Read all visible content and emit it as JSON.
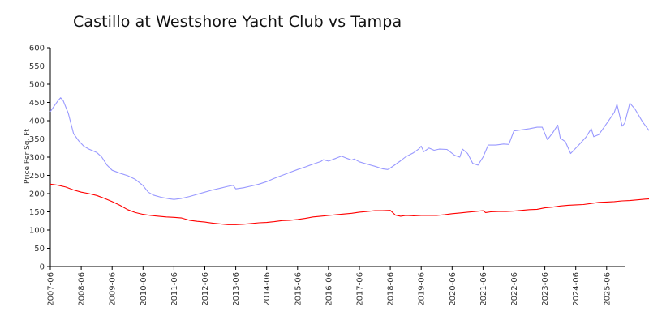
{
  "chart_data": {
    "type": "line",
    "title": "Castillo at Westshore Yacht Club vs Tampa",
    "xlabel": "",
    "ylabel": "Price Per Sq. Ft",
    "ylim": [
      0,
      600
    ],
    "yticks": [
      0,
      50,
      100,
      150,
      200,
      250,
      300,
      350,
      400,
      450,
      500,
      550,
      600
    ],
    "xticks": [
      "2007-06",
      "2008-06",
      "2009-06",
      "2010-06",
      "2011-06",
      "2012-06",
      "2013-06",
      "2014-06",
      "2015-06",
      "2016-06",
      "2017-06",
      "2018-06",
      "2019-06",
      "2020-06",
      "2021-06",
      "2022-06",
      "2023-06",
      "2024-06",
      "2025-06"
    ],
    "grid": false,
    "series": [
      {
        "color": "#9999ff",
        "points": [
          [
            "2007-06",
            425
          ],
          [
            "2007-09",
            455
          ],
          [
            "2007-10",
            463
          ],
          [
            "2007-11",
            455
          ],
          [
            "2008-01",
            420
          ],
          [
            "2008-03",
            365
          ],
          [
            "2008-05",
            345
          ],
          [
            "2008-07",
            330
          ],
          [
            "2008-09",
            322
          ],
          [
            "2008-12",
            313
          ],
          [
            "2009-02",
            300
          ],
          [
            "2009-04",
            278
          ],
          [
            "2009-06",
            264
          ],
          [
            "2009-09",
            256
          ],
          [
            "2009-12",
            249
          ],
          [
            "2010-03",
            239
          ],
          [
            "2010-06",
            222
          ],
          [
            "2010-08",
            204
          ],
          [
            "2010-10",
            196
          ],
          [
            "2011-01",
            190
          ],
          [
            "2011-04",
            186
          ],
          [
            "2011-06",
            184
          ],
          [
            "2011-09",
            187
          ],
          [
            "2011-12",
            192
          ],
          [
            "2012-03",
            198
          ],
          [
            "2012-06",
            204
          ],
          [
            "2012-09",
            210
          ],
          [
            "2012-12",
            215
          ],
          [
            "2013-03",
            220
          ],
          [
            "2013-05",
            223
          ],
          [
            "2013-06",
            213
          ],
          [
            "2013-09",
            216
          ],
          [
            "2013-12",
            221
          ],
          [
            "2014-03",
            226
          ],
          [
            "2014-06",
            233
          ],
          [
            "2014-09",
            242
          ],
          [
            "2014-12",
            250
          ],
          [
            "2015-03",
            258
          ],
          [
            "2015-06",
            266
          ],
          [
            "2015-09",
            273
          ],
          [
            "2015-12",
            281
          ],
          [
            "2016-03",
            288
          ],
          [
            "2016-04",
            293
          ],
          [
            "2016-06",
            289
          ],
          [
            "2016-09",
            297
          ],
          [
            "2016-11",
            303
          ],
          [
            "2017-01",
            297
          ],
          [
            "2017-03",
            292
          ],
          [
            "2017-04",
            295
          ],
          [
            "2017-06",
            287
          ],
          [
            "2017-09",
            281
          ],
          [
            "2017-12",
            275
          ],
          [
            "2018-03",
            268
          ],
          [
            "2018-05",
            266
          ],
          [
            "2018-06",
            270
          ],
          [
            "2018-08",
            280
          ],
          [
            "2018-10",
            290
          ],
          [
            "2018-12",
            301
          ],
          [
            "2019-03",
            312
          ],
          [
            "2019-05",
            322
          ],
          [
            "2019-06",
            330
          ],
          [
            "2019-07",
            315
          ],
          [
            "2019-09",
            325
          ],
          [
            "2019-11",
            319
          ],
          [
            "2020-01",
            322
          ],
          [
            "2020-04",
            321
          ],
          [
            "2020-07",
            305
          ],
          [
            "2020-09",
            300
          ],
          [
            "2020-10",
            322
          ],
          [
            "2020-12",
            310
          ],
          [
            "2021-02",
            283
          ],
          [
            "2021-04",
            278
          ],
          [
            "2021-06",
            300
          ],
          [
            "2021-08",
            333
          ],
          [
            "2021-11",
            333
          ],
          [
            "2022-02",
            336
          ],
          [
            "2022-04",
            335
          ],
          [
            "2022-06",
            372
          ],
          [
            "2022-09",
            375
          ],
          [
            "2022-12",
            378
          ],
          [
            "2023-03",
            382
          ],
          [
            "2023-05",
            382
          ],
          [
            "2023-07",
            348
          ],
          [
            "2023-09",
            366
          ],
          [
            "2023-11",
            388
          ],
          [
            "2023-12",
            352
          ],
          [
            "2024-02",
            342
          ],
          [
            "2024-04",
            310
          ],
          [
            "2024-07",
            332
          ],
          [
            "2024-10",
            355
          ],
          [
            "2024-12",
            378
          ],
          [
            "2025-01",
            356
          ],
          [
            "2025-03",
            362
          ],
          [
            "2025-06",
            392
          ],
          [
            "2025-09",
            423
          ],
          [
            "2025-10",
            445
          ],
          [
            "2025-12",
            385
          ],
          [
            "2026-01",
            393
          ],
          [
            "2026-03",
            448
          ],
          [
            "2026-05",
            432
          ],
          [
            "2026-08",
            396
          ],
          [
            "2026-11",
            368
          ],
          [
            "2027-01",
            353
          ],
          [
            "2027-04",
            390
          ],
          [
            "2027-07",
            432
          ],
          [
            "2027-10",
            473
          ],
          [
            "2027-12",
            497
          ],
          [
            "2028-03",
            408
          ],
          [
            "2028-04",
            424
          ],
          [
            "2028-06",
            499
          ],
          [
            "2028-09",
            532
          ],
          [
            "2028-11",
            560
          ],
          [
            "2029-02",
            552
          ],
          [
            "2029-03",
            512
          ],
          [
            "2029-05",
            511
          ],
          [
            "2029-08",
            498
          ],
          [
            "2029-11",
            484
          ],
          [
            "2030-02",
            472
          ],
          [
            "2030-04",
            487
          ],
          [
            "2030-07",
            505
          ],
          [
            "2030-10",
            522
          ],
          [
            "2030-12",
            537
          ],
          [
            "2031-03",
            500
          ],
          [
            "2031-06",
            462
          ],
          [
            "2031-09",
            423
          ],
          [
            "2031-12",
            463
          ],
          [
            "2032-03",
            506
          ],
          [
            "2032-06",
            537
          ],
          [
            "2032-09",
            528
          ],
          [
            "2032-12",
            514
          ],
          [
            "2033-02",
            506
          ],
          [
            "2033-04",
            520
          ],
          [
            "2033-06",
            536
          ]
        ]
      },
      {
        "color": "#ff0000",
        "points": [
          [
            "2007-06",
            226
          ],
          [
            "2007-09",
            223
          ],
          [
            "2007-12",
            218
          ],
          [
            "2008-03",
            210
          ],
          [
            "2008-06",
            204
          ],
          [
            "2008-09",
            200
          ],
          [
            "2008-12",
            195
          ],
          [
            "2009-03",
            187
          ],
          [
            "2009-06",
            178
          ],
          [
            "2009-09",
            168
          ],
          [
            "2009-12",
            156
          ],
          [
            "2010-03",
            148
          ],
          [
            "2010-06",
            143
          ],
          [
            "2010-09",
            140
          ],
          [
            "2010-12",
            138
          ],
          [
            "2011-03",
            136
          ],
          [
            "2011-06",
            135
          ],
          [
            "2011-09",
            133
          ],
          [
            "2011-12",
            127
          ],
          [
            "2012-03",
            124
          ],
          [
            "2012-06",
            122
          ],
          [
            "2012-09",
            119
          ],
          [
            "2012-12",
            117
          ],
          [
            "2013-03",
            115
          ],
          [
            "2013-06",
            115
          ],
          [
            "2013-09",
            116
          ],
          [
            "2013-12",
            118
          ],
          [
            "2014-03",
            120
          ],
          [
            "2014-06",
            121
          ],
          [
            "2014-09",
            123
          ],
          [
            "2014-12",
            126
          ],
          [
            "2015-03",
            127
          ],
          [
            "2015-06",
            129
          ],
          [
            "2015-09",
            132
          ],
          [
            "2015-12",
            136
          ],
          [
            "2016-03",
            138
          ],
          [
            "2016-06",
            140
          ],
          [
            "2016-09",
            142
          ],
          [
            "2016-12",
            144
          ],
          [
            "2017-03",
            146
          ],
          [
            "2017-06",
            149
          ],
          [
            "2017-09",
            151
          ],
          [
            "2017-12",
            153
          ],
          [
            "2018-03",
            153
          ],
          [
            "2018-06",
            154
          ],
          [
            "2018-08",
            141
          ],
          [
            "2018-10",
            138
          ],
          [
            "2018-12",
            140
          ],
          [
            "2019-03",
            139
          ],
          [
            "2019-06",
            140
          ],
          [
            "2019-09",
            140
          ],
          [
            "2019-12",
            140
          ],
          [
            "2020-03",
            142
          ],
          [
            "2020-06",
            145
          ],
          [
            "2020-09",
            147
          ],
          [
            "2020-12",
            149
          ],
          [
            "2021-03",
            151
          ],
          [
            "2021-06",
            153
          ],
          [
            "2021-07",
            148
          ],
          [
            "2021-09",
            150
          ],
          [
            "2021-12",
            151
          ],
          [
            "2022-03",
            151
          ],
          [
            "2022-06",
            152
          ],
          [
            "2022-09",
            154
          ],
          [
            "2022-12",
            156
          ],
          [
            "2023-03",
            157
          ],
          [
            "2023-06",
            161
          ],
          [
            "2023-09",
            163
          ],
          [
            "2023-12",
            166
          ],
          [
            "2024-03",
            168
          ],
          [
            "2024-06",
            169
          ],
          [
            "2024-09",
            170
          ],
          [
            "2024-12",
            173
          ],
          [
            "2025-03",
            176
          ],
          [
            "2025-06",
            177
          ],
          [
            "2025-09",
            178
          ],
          [
            "2025-12",
            180
          ],
          [
            "2026-03",
            181
          ],
          [
            "2026-06",
            183
          ],
          [
            "2026-09",
            185
          ],
          [
            "2026-12",
            186
          ],
          [
            "2027-03",
            187
          ],
          [
            "2027-06",
            189
          ],
          [
            "2027-09",
            191
          ],
          [
            "2027-12",
            195
          ],
          [
            "2028-03",
            200
          ],
          [
            "2028-06",
            203
          ],
          [
            "2028-09",
            206
          ],
          [
            "2028-12",
            209
          ],
          [
            "2029-03",
            213
          ],
          [
            "2029-06",
            219
          ],
          [
            "2029-09",
            228
          ],
          [
            "2029-12",
            238
          ],
          [
            "2030-03",
            250
          ],
          [
            "2030-06",
            262
          ],
          [
            "2030-09",
            276
          ],
          [
            "2030-12",
            292
          ],
          [
            "2031-03",
            303
          ],
          [
            "2031-05",
            308
          ],
          [
            "2031-06",
            326
          ],
          [
            "2031-07",
            310
          ],
          [
            "2031-09",
            311
          ],
          [
            "2031-12",
            312
          ],
          [
            "2032-03",
            313
          ],
          [
            "2032-06",
            316
          ],
          [
            "2032-09",
            317
          ],
          [
            "2032-12",
            316
          ],
          [
            "2033-01",
            313
          ],
          [
            "2033-03",
            311
          ],
          [
            "2033-06",
            306
          ],
          [
            "2033-07",
            314
          ],
          [
            "2033-09",
            309
          ],
          [
            "2033-12",
            307
          ],
          [
            "2034-01",
            311
          ],
          [
            "2034-03",
            307
          ],
          [
            "2034-06",
            305
          ],
          [
            "2034-09",
            304
          ],
          [
            "2034-12",
            306
          ],
          [
            "2035-03",
            301
          ],
          [
            "2035-06",
            299
          ],
          [
            "2035-09",
            296
          ],
          [
            "2035-11",
            295
          ]
        ]
      }
    ]
  }
}
